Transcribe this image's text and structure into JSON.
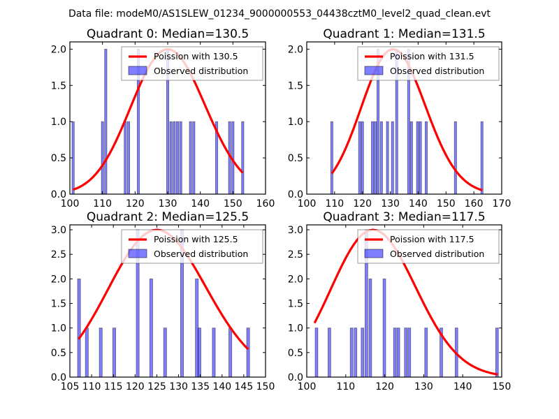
{
  "figure": {
    "suptitle": "Data file: modeM0/AS1SLEW_01234_9000000553_04438cztM0_level2_quad_clean.evt",
    "colors": {
      "curve": "#ff0000",
      "bar_fill": "#0000ff",
      "bar_alpha": 0.5,
      "bar_edge": "#000000"
    }
  },
  "chart_data": [
    {
      "type": "bar",
      "title": "Quadrant 0: Median=130.5",
      "median": 130.5,
      "xlim": [
        100,
        160
      ],
      "ylim": [
        0,
        2.1
      ],
      "xticks": [
        "100",
        "110",
        "120",
        "130",
        "140",
        "150",
        "160"
      ],
      "xtick_values": [
        100,
        110,
        120,
        130,
        140,
        150,
        160
      ],
      "yticks": [
        "0.0",
        "0.5",
        "1.0",
        "1.5",
        "2.0"
      ],
      "ytick_values": [
        0,
        0.5,
        1.0,
        1.5,
        2.0
      ],
      "legend": [
        "Poission with 130.5",
        "Observed distribution"
      ],
      "legend_loc": "upper-right",
      "bins": [
        {
          "x": 101,
          "count": 1
        },
        {
          "x": 110,
          "count": 1
        },
        {
          "x": 111,
          "count": 2
        },
        {
          "x": 117,
          "count": 1
        },
        {
          "x": 118,
          "count": 1
        },
        {
          "x": 121,
          "count": 2
        },
        {
          "x": 130,
          "count": 2
        },
        {
          "x": 131,
          "count": 1
        },
        {
          "x": 132,
          "count": 1
        },
        {
          "x": 133,
          "count": 1
        },
        {
          "x": 134,
          "count": 1
        },
        {
          "x": 137,
          "count": 1
        },
        {
          "x": 138,
          "count": 1
        },
        {
          "x": 145,
          "count": 1
        },
        {
          "x": 149,
          "count": 1
        },
        {
          "x": 150,
          "count": 1
        },
        {
          "x": 153,
          "count": 1
        }
      ],
      "curve_range": [
        101,
        153
      ],
      "curve_peak": 2.0
    },
    {
      "type": "bar",
      "title": "Quadrant 1: Median=131.5",
      "median": 131.5,
      "xlim": [
        100,
        170
      ],
      "ylim": [
        0,
        2.1
      ],
      "xticks": [
        "100",
        "110",
        "120",
        "130",
        "140",
        "150",
        "160",
        "170"
      ],
      "xtick_values": [
        100,
        110,
        120,
        130,
        140,
        150,
        160,
        170
      ],
      "yticks": [
        "0.0",
        "0.5",
        "1.0",
        "1.5",
        "2.0"
      ],
      "ytick_values": [
        0,
        0.5,
        1.0,
        1.5,
        2.0
      ],
      "legend": [
        "Poission with 131.5",
        "Observed distribution"
      ],
      "legend_loc": "upper-right",
      "bins": [
        {
          "x": 109,
          "count": 1
        },
        {
          "x": 119,
          "count": 1
        },
        {
          "x": 120,
          "count": 1
        },
        {
          "x": 123.6,
          "count": 1
        },
        {
          "x": 124.6,
          "count": 1
        },
        {
          "x": 125.6,
          "count": 2
        },
        {
          "x": 126.8,
          "count": 1
        },
        {
          "x": 129,
          "count": 1
        },
        {
          "x": 130.8,
          "count": 1
        },
        {
          "x": 132.3,
          "count": 2
        },
        {
          "x": 136.6,
          "count": 2
        },
        {
          "x": 137.6,
          "count": 1
        },
        {
          "x": 139.8,
          "count": 1
        },
        {
          "x": 140.8,
          "count": 1
        },
        {
          "x": 142.9,
          "count": 1
        },
        {
          "x": 153.4,
          "count": 1
        },
        {
          "x": 162.9,
          "count": 1
        }
      ],
      "curve_range": [
        109,
        163
      ],
      "curve_peak": 2.0
    },
    {
      "type": "bar",
      "title": "Quadrant 2: Median=125.5",
      "median": 125.5,
      "xlim": [
        105,
        150
      ],
      "ylim": [
        0,
        3.1
      ],
      "xticks": [
        "105",
        "110",
        "115",
        "120",
        "125",
        "130",
        "135",
        "140",
        "145",
        "150"
      ],
      "xtick_values": [
        105,
        110,
        115,
        120,
        125,
        130,
        135,
        140,
        145,
        150
      ],
      "yticks": [
        "0.0",
        "0.5",
        "1.0",
        "1.5",
        "2.0",
        "2.5",
        "3.0"
      ],
      "ytick_values": [
        0,
        0.5,
        1.0,
        1.5,
        2.0,
        2.5,
        3.0
      ],
      "legend": [
        "Poission with 125.5",
        "Observed distribution"
      ],
      "legend_loc": "upper-right",
      "bins": [
        {
          "x": 107.1,
          "count": 2
        },
        {
          "x": 108.9,
          "count": 1
        },
        {
          "x": 112.1,
          "count": 1
        },
        {
          "x": 115.2,
          "count": 1
        },
        {
          "x": 120.6,
          "count": 3
        },
        {
          "x": 123.7,
          "count": 2
        },
        {
          "x": 126.9,
          "count": 1
        },
        {
          "x": 130.8,
          "count": 3
        },
        {
          "x": 134.2,
          "count": 2
        },
        {
          "x": 134.8,
          "count": 1
        },
        {
          "x": 138.1,
          "count": 1
        },
        {
          "x": 141.9,
          "count": 1
        },
        {
          "x": 146,
          "count": 1
        }
      ],
      "curve_range": [
        107,
        146
      ],
      "curve_peak": 3.0
    },
    {
      "type": "bar",
      "title": "Quadrant 3: Median=117.5",
      "median": 117.5,
      "xlim": [
        100,
        150
      ],
      "ylim": [
        0,
        3.1
      ],
      "xticks": [
        "100",
        "110",
        "120",
        "130",
        "140",
        "150"
      ],
      "xtick_values": [
        100,
        110,
        120,
        130,
        140,
        150
      ],
      "yticks": [
        "0.0",
        "0.5",
        "1.0",
        "1.5",
        "2.0",
        "2.5",
        "3.0"
      ],
      "ytick_values": [
        0,
        0.5,
        1.0,
        1.5,
        2.0,
        2.5,
        3.0
      ],
      "legend": [
        "Poission with 117.5",
        "Observed distribution"
      ],
      "legend_loc": "upper-right",
      "bins": [
        {
          "x": 102.5,
          "count": 1
        },
        {
          "x": 105.8,
          "count": 1
        },
        {
          "x": 111.5,
          "count": 1
        },
        {
          "x": 112.5,
          "count": 1
        },
        {
          "x": 114.3,
          "count": 1
        },
        {
          "x": 115.3,
          "count": 3
        },
        {
          "x": 116.3,
          "count": 2
        },
        {
          "x": 119.9,
          "count": 2
        },
        {
          "x": 122.6,
          "count": 1
        },
        {
          "x": 123.5,
          "count": 1
        },
        {
          "x": 125.4,
          "count": 1
        },
        {
          "x": 126.3,
          "count": 1
        },
        {
          "x": 130.6,
          "count": 1
        },
        {
          "x": 134.5,
          "count": 1
        },
        {
          "x": 138.4,
          "count": 1
        },
        {
          "x": 148.8,
          "count": 1
        }
      ],
      "curve_range": [
        102,
        149
      ],
      "curve_peak": 3.0
    }
  ]
}
